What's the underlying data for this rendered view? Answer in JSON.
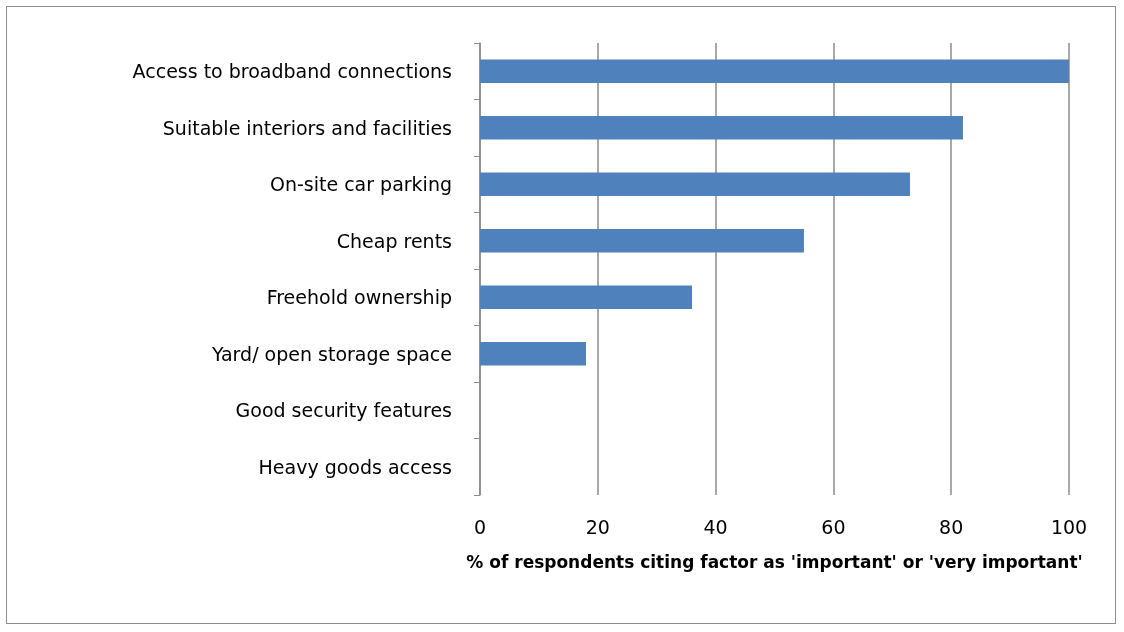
{
  "chart_data": {
    "type": "bar",
    "orientation": "horizontal",
    "xlabel": "% of respondents citing factor as 'important' or 'very important'",
    "categories": [
      "Access to broadband connections",
      "Suitable interiors and facilities",
      "On-site car parking",
      "Cheap rents",
      "Freehold ownership",
      "Yard/ open storage space",
      "Good security features",
      "Heavy goods access"
    ],
    "values": [
      100,
      82,
      73,
      55,
      36,
      18,
      0,
      0
    ],
    "color": "#4f81bd",
    "xlim": [
      0,
      100
    ],
    "xticks": [
      0,
      20,
      40,
      60,
      80,
      100
    ],
    "grid": "x"
  }
}
